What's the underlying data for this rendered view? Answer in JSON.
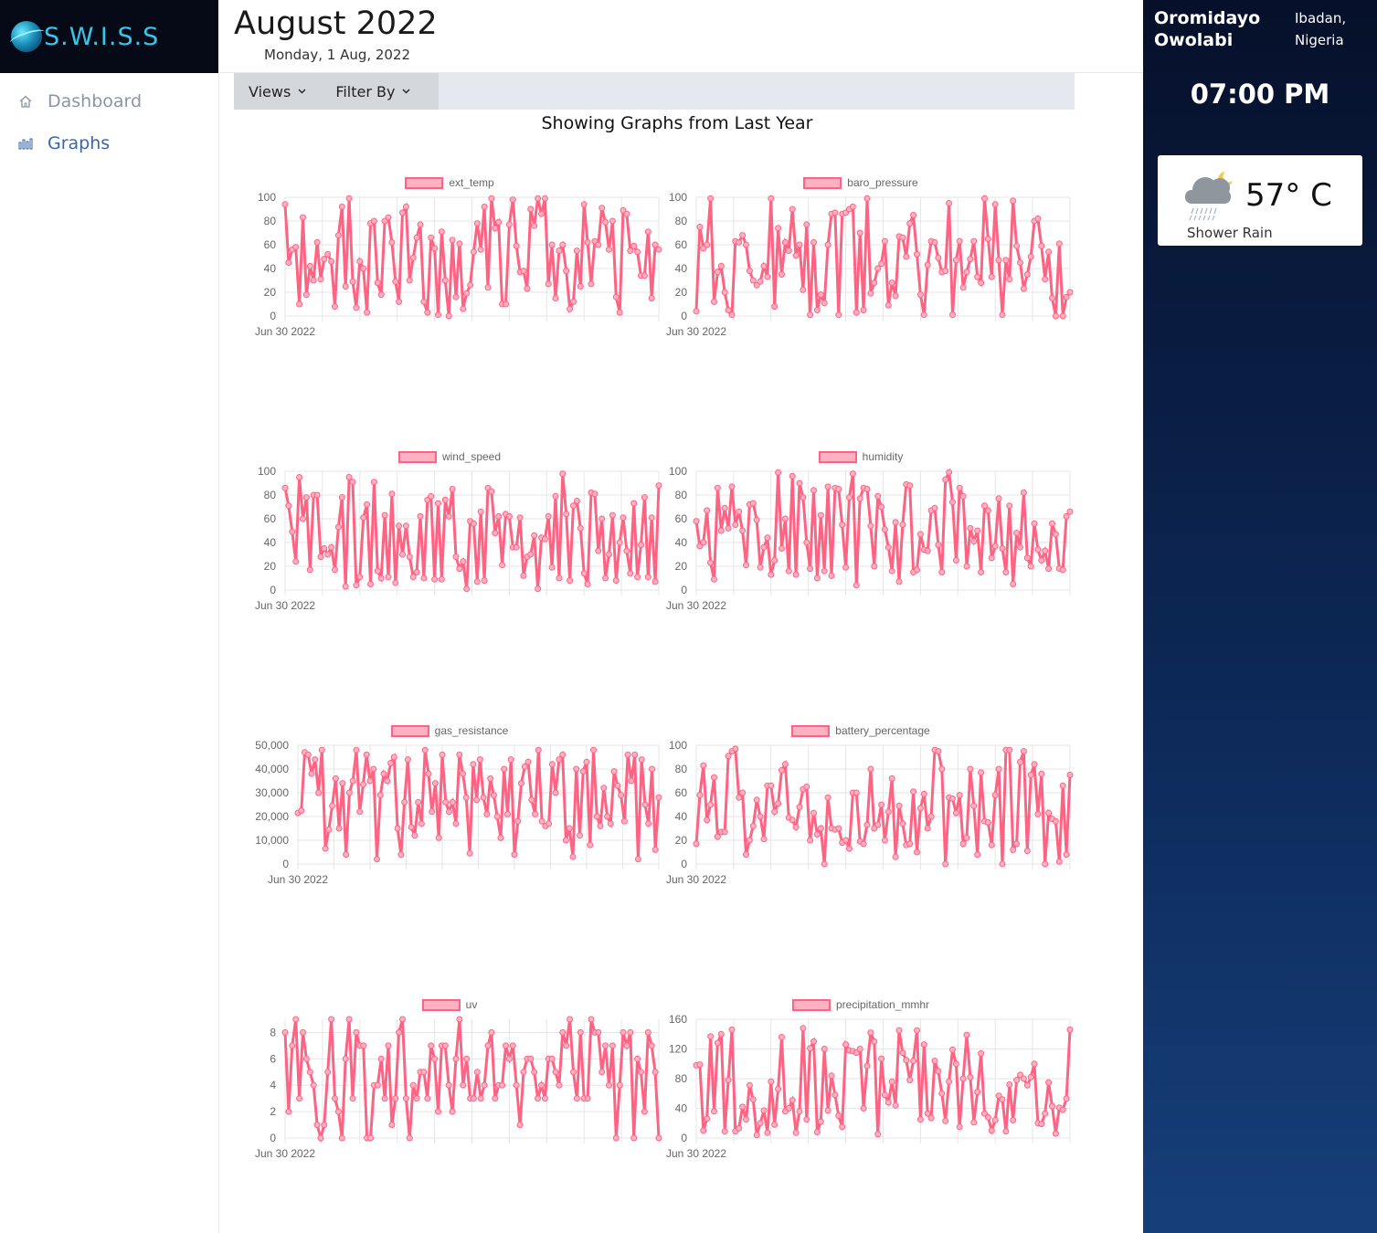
{
  "brand": {
    "logo_text": "S.W.I.S.S"
  },
  "sidebar": {
    "items": [
      {
        "label": "Dashboard",
        "icon": "home-icon"
      },
      {
        "label": "Graphs",
        "icon": "bar-chart-icon"
      }
    ]
  },
  "header": {
    "title": "August 2022",
    "date": "Monday, 1 Aug, 2022"
  },
  "toolbar": {
    "views_label": "Views",
    "filter_label": "Filter By"
  },
  "section_title": "Showing Graphs from Last Year",
  "right_panel": {
    "user_name": "Oromidayo Owolabi",
    "location": "Ibadan, Nigeria",
    "time": "07:00 PM",
    "weather": {
      "temperature": "57° C",
      "description": "Shower Rain",
      "icon": "shower-rain-night-icon"
    }
  },
  "colors": {
    "line": "#ff6384",
    "fill": "#ffb1c1",
    "accent": "#3a66a8"
  },
  "chart_data": [
    {
      "type": "line",
      "series": [
        {
          "name": "ext_temp",
          "values": [
            94,
            45,
            56,
            58,
            10,
            83,
            18,
            42,
            30,
            62,
            31,
            48,
            52,
            46,
            8,
            68,
            92,
            25,
            99,
            29,
            7,
            46,
            40,
            3,
            78,
            80,
            28,
            18,
            80,
            83,
            62,
            29,
            12,
            87,
            92,
            30,
            49,
            66,
            77,
            12,
            3,
            66,
            57,
            1,
            71,
            30,
            0,
            64,
            16,
            61,
            6,
            19,
            26,
            54,
            78,
            56,
            92,
            24,
            99,
            74,
            79,
            10,
            10,
            77,
            98,
            59,
            37,
            38,
            23,
            90,
            76,
            99,
            86,
            99,
            27,
            60,
            15,
            55,
            60,
            38,
            6,
            12,
            55,
            25,
            94,
            62,
            27,
            63,
            60,
            91,
            79,
            56,
            80,
            16,
            3,
            89,
            86,
            55,
            59,
            54,
            34,
            34,
            71,
            15,
            60,
            56
          ]
        }
      ],
      "xticks": [
        "Jun 30 2022"
      ],
      "yticks": [
        "0",
        "20",
        "40",
        "60",
        "80",
        "100"
      ],
      "ylim": [
        0,
        100
      ]
    },
    {
      "type": "line",
      "series": [
        {
          "name": "baro_pressure",
          "values": [
            4,
            75,
            57,
            60,
            99,
            12,
            37,
            42,
            20,
            5,
            1,
            63,
            62,
            68,
            60,
            38,
            30,
            26,
            29,
            42,
            33,
            99,
            8,
            74,
            35,
            62,
            55,
            90,
            51,
            60,
            22,
            77,
            1,
            62,
            5,
            18,
            11,
            60,
            86,
            87,
            1,
            86,
            87,
            90,
            92,
            3,
            70,
            5,
            99,
            19,
            28,
            40,
            44,
            63,
            9,
            28,
            17,
            67,
            66,
            50,
            78,
            85,
            52,
            18,
            1,
            43,
            63,
            62,
            49,
            37,
            38,
            95,
            1,
            47,
            63,
            24,
            37,
            48,
            63,
            33,
            28,
            99,
            65,
            33,
            94,
            47,
            1,
            47,
            31,
            97,
            59,
            45,
            23,
            35,
            50,
            80,
            82,
            59,
            31,
            54,
            15,
            0,
            61,
            0,
            16,
            20
          ]
        }
      ],
      "xticks": [
        "Jun 30 2022"
      ],
      "yticks": [
        "0",
        "20",
        "40",
        "60",
        "80",
        "100"
      ],
      "ylim": [
        0,
        100
      ]
    },
    {
      "type": "line",
      "series": [
        {
          "name": "wind_speed",
          "values": [
            86,
            71,
            49,
            24,
            95,
            60,
            78,
            17,
            80,
            80,
            28,
            35,
            30,
            36,
            17,
            53,
            78,
            3,
            95,
            91,
            4,
            11,
            61,
            72,
            5,
            91,
            16,
            10,
            63,
            11,
            81,
            6,
            54,
            30,
            54,
            28,
            11,
            15,
            62,
            10,
            76,
            79,
            9,
            73,
            9,
            76,
            62,
            85,
            28,
            18,
            24,
            1,
            58,
            56,
            7,
            66,
            8,
            86,
            83,
            48,
            62,
            21,
            64,
            62,
            36,
            36,
            61,
            12,
            28,
            30,
            46,
            1,
            44,
            43,
            62,
            19,
            79,
            10,
            98,
            64,
            8,
            71,
            75,
            52,
            14,
            5,
            82,
            81,
            33,
            60,
            10,
            30,
            63,
            8,
            40,
            61,
            33,
            14,
            73,
            11,
            38,
            78,
            11,
            61,
            7,
            88
          ]
        }
      ],
      "xticks": [
        "Jun 30 2022"
      ],
      "yticks": [
        "0",
        "20",
        "40",
        "60",
        "80",
        "100"
      ],
      "ylim": [
        0,
        100
      ]
    },
    {
      "type": "line",
      "series": [
        {
          "name": "humidity",
          "values": [
            58,
            37,
            40,
            67,
            23,
            9,
            86,
            50,
            69,
            52,
            87,
            55,
            66,
            50,
            21,
            72,
            73,
            59,
            19,
            36,
            44,
            13,
            25,
            99,
            35,
            60,
            16,
            96,
            13,
            90,
            78,
            40,
            18,
            84,
            10,
            63,
            16,
            87,
            12,
            86,
            85,
            55,
            19,
            78,
            98,
            4,
            77,
            86,
            85,
            54,
            20,
            79,
            70,
            51,
            36,
            16,
            57,
            7,
            55,
            89,
            88,
            15,
            17,
            47,
            34,
            33,
            67,
            69,
            38,
            15,
            93,
            99,
            74,
            25,
            86,
            79,
            20,
            52,
            41,
            50,
            15,
            71,
            67,
            27,
            37,
            77,
            35,
            15,
            71,
            5,
            48,
            36,
            82,
            27,
            20,
            56,
            34,
            25,
            33,
            18,
            56,
            47,
            18,
            17,
            62,
            66
          ]
        }
      ],
      "xticks": [
        "Jun 30 2022"
      ],
      "yticks": [
        "0",
        "20",
        "40",
        "60",
        "80",
        "100"
      ],
      "ylim": [
        0,
        100
      ]
    },
    {
      "type": "line",
      "series": [
        {
          "name": "gas_resistance",
          "values": [
            21500,
            22500,
            47000,
            46000,
            38000,
            44000,
            30000,
            48000,
            6500,
            14500,
            24500,
            36000,
            15000,
            34000,
            4000,
            30000,
            35000,
            48000,
            22000,
            33500,
            46000,
            35000,
            40000,
            2000,
            29000,
            38000,
            35000,
            42500,
            45000,
            15000,
            4000,
            26000,
            44000,
            15500,
            12000,
            26000,
            17000,
            48000,
            38000,
            22000,
            34000,
            11000,
            46000,
            26000,
            22000,
            26000,
            17000,
            46000,
            38000,
            28000,
            4500,
            42000,
            27000,
            44000,
            28000,
            21000,
            36000,
            29000,
            20000,
            11000,
            40000,
            21000,
            44000,
            4000,
            18000,
            34000,
            41000,
            43000,
            27000,
            21000,
            48000,
            18000,
            16000,
            17000,
            42000,
            30000,
            44000,
            46000,
            10000,
            15000,
            3000,
            40000,
            12000,
            39000,
            43000,
            8000,
            48000,
            20000,
            16000,
            32000,
            20000,
            17000,
            39000,
            33000,
            29000,
            18000,
            46000,
            35000,
            46000,
            2000,
            44000,
            25000,
            17000,
            40000,
            6000,
            28000
          ]
        }
      ],
      "xticks": [
        "Jun 30 2022"
      ],
      "yticks": [
        "0",
        "10,000",
        "20,000",
        "30,000",
        "40,000",
        "50,000"
      ],
      "ylim": [
        0,
        50000
      ]
    },
    {
      "type": "line",
      "series": [
        {
          "name": "battery_percentage",
          "values": [
            17,
            58,
            83,
            37,
            50,
            73,
            23,
            27,
            27,
            91,
            95,
            97,
            56,
            60,
            8,
            20,
            32,
            54,
            40,
            21,
            66,
            66,
            44,
            51,
            79,
            84,
            39,
            37,
            31,
            48,
            63,
            65,
            20,
            43,
            25,
            30,
            0,
            56,
            30,
            29,
            30,
            18,
            20,
            13,
            60,
            60,
            19,
            17,
            33,
            80,
            30,
            33,
            50,
            20,
            44,
            72,
            6,
            49,
            34,
            16,
            17,
            61,
            10,
            47,
            59,
            30,
            40,
            96,
            95,
            80,
            0,
            56,
            55,
            43,
            58,
            17,
            22,
            80,
            49,
            8,
            77,
            36,
            35,
            16,
            58,
            80,
            0,
            96,
            96,
            12,
            17,
            86,
            95,
            11,
            75,
            84,
            42,
            76,
            0,
            43,
            38,
            36,
            2,
            66,
            8,
            75
          ]
        }
      ],
      "xticks": [
        "Jun 30 2022"
      ],
      "yticks": [
        "0",
        "20",
        "40",
        "60",
        "80",
        "100"
      ],
      "ylim": [
        0,
        100
      ]
    },
    {
      "type": "line",
      "series": [
        {
          "name": "uv",
          "values": [
            8,
            2,
            7,
            9,
            3,
            8,
            6,
            5,
            4,
            1,
            0,
            1,
            5,
            9,
            3,
            2,
            0,
            6,
            9,
            3,
            8,
            7,
            7,
            0,
            0,
            4,
            4,
            6,
            3,
            7,
            1,
            3,
            8,
            9,
            3,
            0,
            4,
            3,
            5,
            5,
            3,
            7,
            6,
            2,
            7,
            7,
            4,
            2,
            6,
            9,
            4,
            6,
            3,
            3,
            5,
            3,
            4,
            7,
            8,
            3,
            4,
            4,
            7,
            6,
            7,
            4,
            1,
            5,
            6,
            6,
            5,
            3,
            4,
            3,
            6,
            6,
            5,
            4,
            8,
            7,
            9,
            5,
            3,
            8,
            3,
            3,
            9,
            8,
            8,
            5,
            7,
            4,
            7,
            0,
            4,
            8,
            7,
            8,
            0,
            6,
            5,
            2,
            8,
            7,
            5,
            0
          ]
        }
      ],
      "xticks": [
        "Jun 30 2022"
      ],
      "yticks": [
        "0",
        "2",
        "4",
        "6",
        "8"
      ],
      "ylim": [
        0,
        9
      ]
    },
    {
      "type": "line",
      "series": [
        {
          "name": "precipitation_mmhr",
          "values": [
            98,
            99,
            10,
            26,
            137,
            36,
            128,
            140,
            9,
            78,
            146,
            9,
            13,
            42,
            25,
            71,
            52,
            4,
            20,
            37,
            7,
            76,
            18,
            66,
            136,
            36,
            40,
            51,
            7,
            36,
            148,
            25,
            121,
            130,
            8,
            22,
            120,
            37,
            84,
            58,
            30,
            15,
            126,
            118,
            117,
            115,
            120,
            40,
            97,
            142,
            130,
            5,
            107,
            58,
            48,
            76,
            44,
            145,
            115,
            105,
            78,
            104,
            145,
            25,
            126,
            33,
            27,
            104,
            90,
            60,
            23,
            76,
            119,
            100,
            15,
            80,
            139,
            82,
            21,
            62,
            114,
            33,
            28,
            10,
            24,
            57,
            52,
            9,
            72,
            24,
            78,
            85,
            80,
            71,
            82,
            100,
            20,
            19,
            33,
            75,
            43,
            6,
            41,
            38,
            53,
            146
          ]
        }
      ],
      "xticks": [
        "Jun 30 2022"
      ],
      "yticks": [
        "0",
        "40",
        "80",
        "120",
        "160"
      ],
      "ylim": [
        0,
        160
      ]
    }
  ]
}
